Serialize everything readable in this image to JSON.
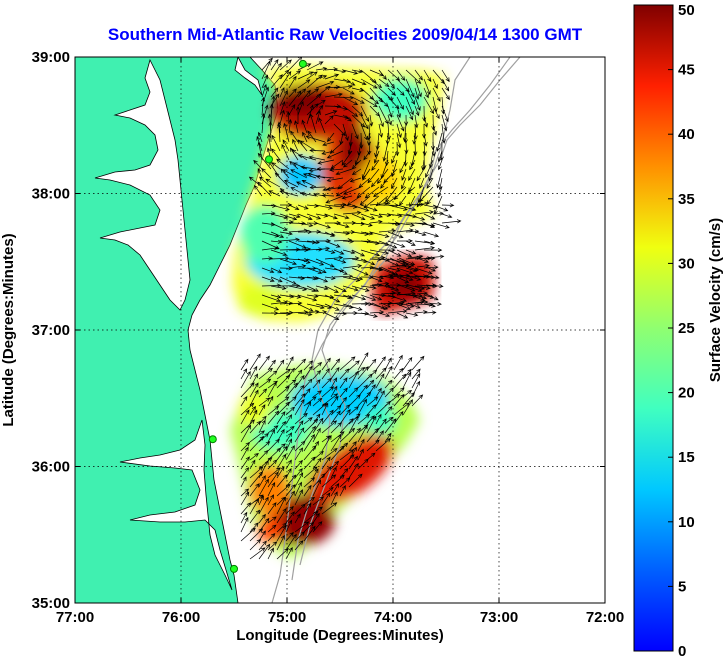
{
  "chart_data": {
    "type": "heatmap",
    "title": "Southern Mid-Atlantic Raw Velocities 2009/04/14 1300 GMT",
    "xlabel": "Longitude (Degrees:Minutes)",
    "ylabel": "Latitude (Degrees:Minutes)",
    "x_ticks": [
      "77:00",
      "76:00",
      "75:00",
      "74:00",
      "73:00",
      "72:00"
    ],
    "x_tick_values": [
      -77,
      -76,
      -75,
      -74,
      -73,
      -72
    ],
    "y_ticks": [
      "35:00",
      "36:00",
      "37:00",
      "38:00",
      "39:00"
    ],
    "y_tick_values": [
      35,
      36,
      37,
      38,
      39
    ],
    "xlim": [
      -77,
      -72
    ],
    "ylim": [
      35,
      39
    ],
    "grid": true,
    "colorbar": {
      "label": "Surface Velocity (cm/s)",
      "range": [
        0,
        50
      ],
      "ticks": [
        "0",
        "5",
        "10",
        "15",
        "20",
        "25",
        "30",
        "35",
        "40",
        "45",
        "50"
      ],
      "colormap": "jet"
    },
    "radar_sites": [
      {
        "lon": -74.85,
        "lat": 38.95
      },
      {
        "lon": -75.17,
        "lat": 38.25
      },
      {
        "lon": -75.7,
        "lat": 36.2
      },
      {
        "lon": -75.5,
        "lat": 35.25
      }
    ],
    "colors": {
      "title": "#0000ff",
      "land": "#40f0b0",
      "contours": "#a0a0a0"
    }
  }
}
